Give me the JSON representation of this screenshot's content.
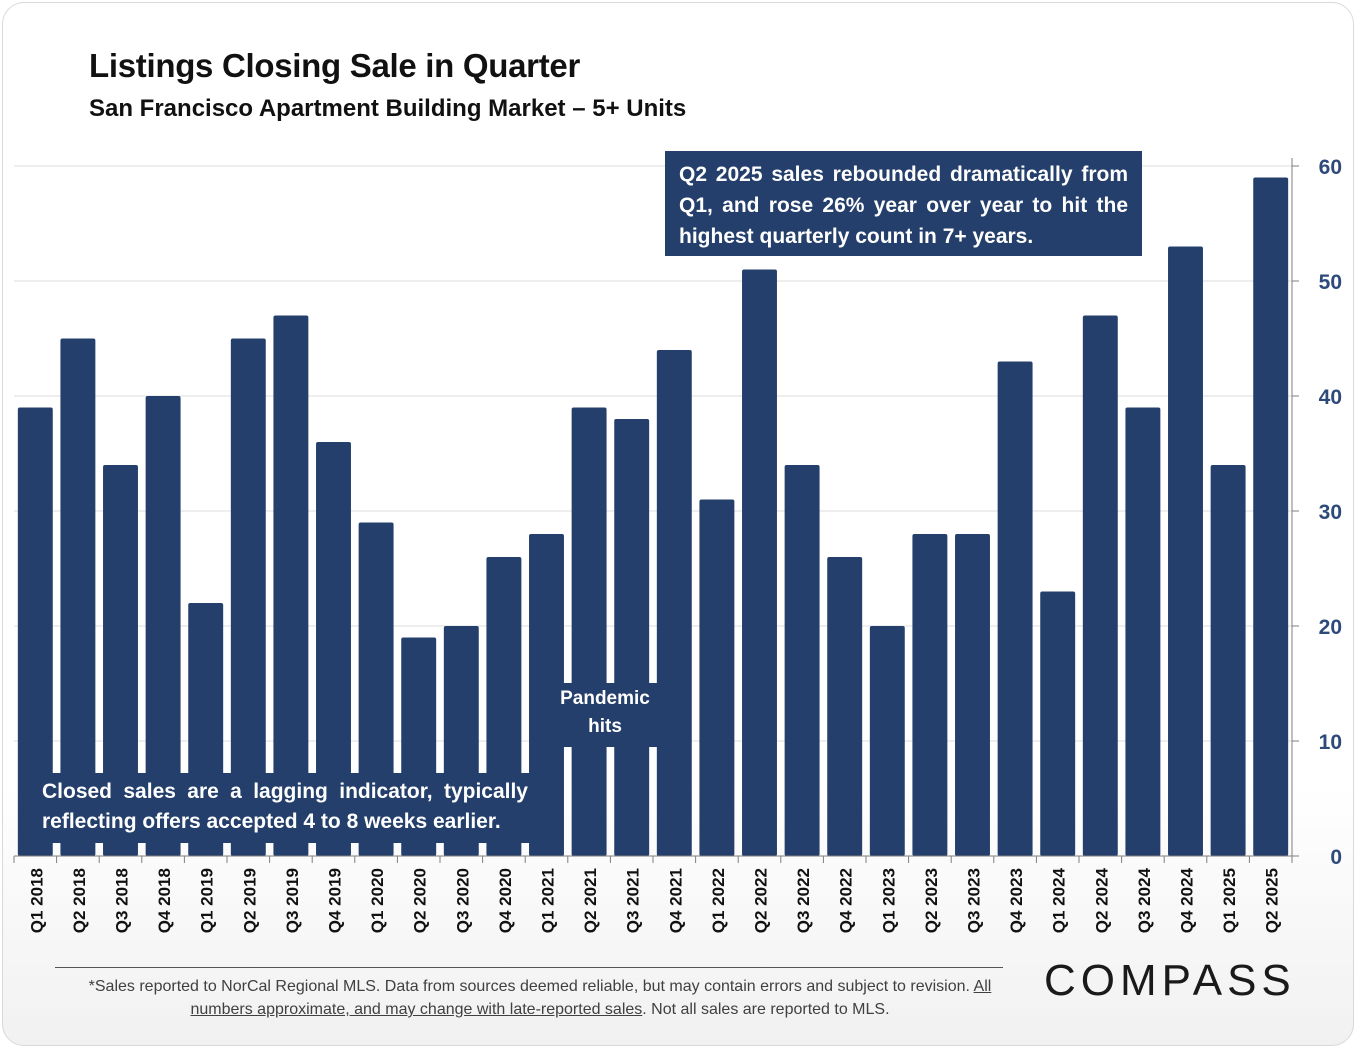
{
  "header": {
    "title": "Listings Closing Sale in Quarter",
    "subtitle": "San Francisco Apartment Building Market – 5+ Units"
  },
  "callouts": {
    "top_right": "Q2 2025 sales rebounded dramatically from Q1, and rose 26% year over year to hit the highest quarterly count in 7+ years.",
    "bottom_left": "Closed sales are a lagging indicator, typically reflecting offers accepted 4 to 8 weeks earlier.",
    "pandemic_line1": "Pandemic",
    "pandemic_line2": "hits"
  },
  "footer": {
    "note_part1": "*Sales reported to NorCal Regional MLS. Data from sources deemed reliable, but may contain errors and subject to revision. ",
    "note_underlined": "All numbers approximate, and may change with late-reported sales",
    "note_part2": ". Not all sales are reported to MLS.",
    "logo": "COMPASS"
  },
  "colors": {
    "bar": "#243f6b",
    "axis_label": "#2e4a7a"
  },
  "chart_data": {
    "type": "bar",
    "title": "Listings Closing Sale in Quarter",
    "subtitle": "San Francisco Apartment Building Market – 5+ Units",
    "xlabel": "",
    "ylabel": "",
    "y_axis_side": "right",
    "ylim": [
      0,
      60
    ],
    "yticks": [
      0,
      10,
      20,
      30,
      40,
      50,
      60
    ],
    "grid": true,
    "categories": [
      "Q1 2018",
      "Q2 2018",
      "Q3 2018",
      "Q4 2018",
      "Q1 2019",
      "Q2 2019",
      "Q3 2019",
      "Q4 2019",
      "Q1 2020",
      "Q2 2020",
      "Q3 2020",
      "Q4 2020",
      "Q1 2021",
      "Q2 2021",
      "Q3 2021",
      "Q4 2021",
      "Q1 2022",
      "Q2 2022",
      "Q3 2022",
      "Q4 2022",
      "Q1 2023",
      "Q2 2023",
      "Q3 2023",
      "Q4 2023",
      "Q1 2024",
      "Q2 2024",
      "Q3 2024",
      "Q4 2024",
      "Q1 2025",
      "Q2 2025"
    ],
    "values": [
      39,
      45,
      34,
      40,
      22,
      45,
      47,
      36,
      29,
      19,
      20,
      26,
      28,
      39,
      38,
      44,
      31,
      51,
      34,
      26,
      20,
      28,
      28,
      43,
      23,
      47,
      39,
      53,
      34,
      59
    ]
  }
}
